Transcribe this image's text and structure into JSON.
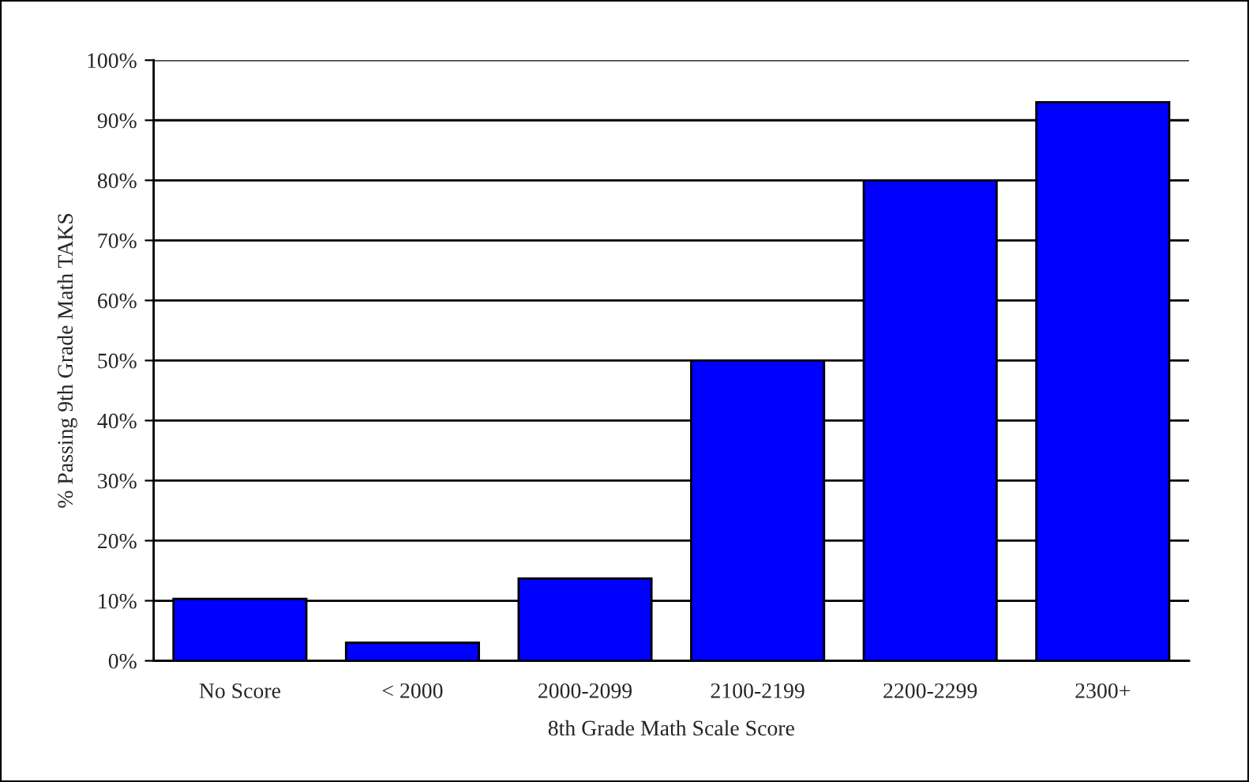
{
  "chart_data": {
    "type": "bar",
    "xlabel": "8th Grade Math Scale Score",
    "ylabel": "% Passing 9th Grade Math TAKS",
    "categories": [
      "No Score",
      "< 2000",
      "2000-2099",
      "2100-2199",
      "2200-2299",
      "2300+"
    ],
    "values": [
      10.3,
      3.0,
      13.7,
      50,
      80,
      93
    ],
    "color": "#0000ff",
    "ylim": [
      0,
      100
    ],
    "yticks": [
      {
        "value": 0,
        "label": "0%"
      },
      {
        "value": 10,
        "label": "10%"
      },
      {
        "value": 20,
        "label": "20%"
      },
      {
        "value": 30,
        "label": "30%"
      },
      {
        "value": 40,
        "label": "40%"
      },
      {
        "value": 50,
        "label": "50%"
      },
      {
        "value": 60,
        "label": "60%"
      },
      {
        "value": 70,
        "label": "70%"
      },
      {
        "value": 80,
        "label": "80%"
      },
      {
        "value": 90,
        "label": "90%"
      },
      {
        "value": 100,
        "label": "100%"
      }
    ],
    "grid": "y"
  }
}
